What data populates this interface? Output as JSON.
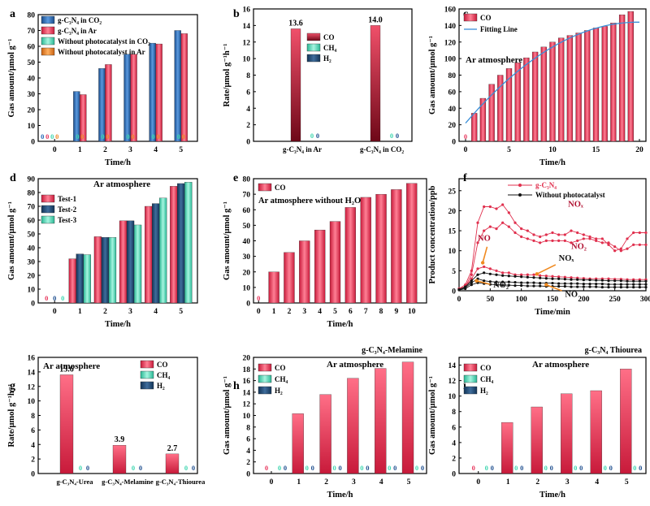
{
  "chart_data": [
    {
      "panel": "a",
      "type": "bar",
      "xlabel": "Time/h",
      "ylabel": "Gas amount/μmol g⁻¹",
      "xticks": [
        "0",
        "1",
        "2",
        "3",
        "4",
        "5"
      ],
      "ylim": [
        0,
        80
      ],
      "yticks": [
        0,
        10,
        20,
        30,
        40,
        50,
        60,
        70,
        80
      ],
      "legend": [
        "g-C₃N₄ in CO₂",
        "g-C₃N₄ in Ar",
        "Without photocatalyst in CO₂",
        "Without photocatalyst in Ar"
      ],
      "series": [
        {
          "name": "g-C₃N₄ in CO₂",
          "color": "#2468b4",
          "values": [
            0,
            31.5,
            46,
            55,
            62,
            70
          ]
        },
        {
          "name": "g-C₃N₄ in Ar",
          "color": "#e8385e",
          "values": [
            0,
            29.5,
            48.5,
            55,
            61.5,
            68
          ]
        },
        {
          "name": "Without photocatalyst in CO₂",
          "color": "#3fd6b0",
          "values": [
            0,
            0,
            0,
            0,
            0,
            0
          ]
        },
        {
          "name": "Without photocatalyst in Ar",
          "color": "#ee8a2a",
          "values": [
            0,
            0,
            0,
            0,
            0,
            0
          ]
        }
      ],
      "zero_labels": "0"
    },
    {
      "panel": "b",
      "type": "bar",
      "ylabel": "Rate/μmol g⁻¹h⁻¹",
      "ylim": [
        0,
        16
      ],
      "yticks": [
        0,
        2,
        4,
        6,
        8,
        10,
        12,
        14,
        16
      ],
      "categories": [
        "g-C₃N₄ in Ar",
        "g-C₃N₄ in CO₂"
      ],
      "legend": [
        "CO",
        "CH₄",
        "H₂"
      ],
      "series": [
        {
          "name": "CO",
          "values": [
            13.6,
            14.0
          ]
        },
        {
          "name": "CH₄",
          "values": [
            0,
            0
          ]
        },
        {
          "name": "H₂",
          "values": [
            0,
            0
          ]
        }
      ],
      "value_labels": [
        "13.6",
        "14.0"
      ]
    },
    {
      "panel": "c",
      "type": "bar",
      "annotation": "Ar atmosphere",
      "xlabel": "Time/h",
      "ylabel": "Gas amount/μmol g⁻¹",
      "xlim": [
        0,
        20
      ],
      "xticks": [
        0,
        5,
        10,
        15,
        20
      ],
      "ylim": [
        0,
        160
      ],
      "yticks": [
        0,
        20,
        40,
        60,
        80,
        100,
        120,
        140,
        160
      ],
      "legend": [
        "CO",
        "Fitting Line"
      ],
      "x": [
        0,
        1,
        2,
        3,
        4,
        5,
        6,
        7,
        8,
        9,
        10,
        11,
        12,
        13,
        14,
        15,
        16,
        17,
        18,
        19
      ],
      "values": [
        0,
        34,
        52,
        69,
        80,
        88,
        95,
        101,
        108,
        114,
        120,
        125,
        128,
        131,
        134,
        137,
        139,
        143,
        153,
        157
      ]
    },
    {
      "panel": "d",
      "type": "bar",
      "annotation": "Ar atmosphere",
      "xlabel": "Time/h",
      "ylabel": "Gas amount/μmol g⁻¹",
      "xticks": [
        "0",
        "1",
        "2",
        "3",
        "4",
        "5"
      ],
      "ylim": [
        0,
        90
      ],
      "yticks": [
        0,
        10,
        20,
        30,
        40,
        50,
        60,
        70,
        80,
        90
      ],
      "legend": [
        "Test-1",
        "Test-2",
        "Test-3"
      ],
      "series": [
        {
          "name": "Test-1",
          "values": [
            0,
            32,
            48,
            59.5,
            70,
            84.5
          ]
        },
        {
          "name": "Test-2",
          "values": [
            0,
            35.5,
            47.5,
            59.5,
            72,
            86.5
          ]
        },
        {
          "name": "Test-3",
          "values": [
            0,
            35,
            47.5,
            56.5,
            76,
            87.5
          ]
        }
      ],
      "zero_labels": "0"
    },
    {
      "panel": "e",
      "type": "bar",
      "annotation": "Ar atmosphere without H₂O",
      "xlabel": "Time/h",
      "ylabel": "Gas amount/μmol g⁻¹",
      "xticks": [
        "0",
        "1",
        "2",
        "3",
        "4",
        "5",
        "6",
        "7",
        "8",
        "9",
        "10"
      ],
      "ylim": [
        0,
        80
      ],
      "yticks": [
        0,
        10,
        20,
        30,
        40,
        50,
        60,
        70,
        80
      ],
      "legend": [
        "CO"
      ],
      "values": [
        0,
        20,
        32.5,
        40,
        47,
        52.5,
        61.5,
        68,
        70,
        73,
        77
      ]
    },
    {
      "panel": "f",
      "type": "line",
      "xlabel": "Time/min",
      "ylabel": "Product concentration/ppb",
      "xlim": [
        0,
        300
      ],
      "xticks": [
        0,
        50,
        100,
        150,
        200,
        250,
        300
      ],
      "ylim": [
        0,
        28
      ],
      "yticks": [
        0,
        5,
        10,
        15,
        20,
        25
      ],
      "legend": [
        "g-C₃N₄",
        "Without photocatalyst"
      ],
      "annotations": [
        "NOₓ",
        "NO₂",
        "NO",
        "NOₓ",
        "NO₂",
        "NO"
      ],
      "series": [
        {
          "name": "g-C₃N₄ NOx",
          "x": [
            0,
            10,
            20,
            30,
            40,
            50,
            60,
            70,
            80,
            90,
            100,
            110,
            120,
            130,
            140,
            150,
            160,
            170,
            180,
            190,
            200,
            210,
            220,
            230,
            240,
            250,
            260,
            270,
            280,
            290,
            300
          ],
          "values": [
            0.5,
            1.5,
            5,
            17,
            21,
            21,
            20.5,
            21.5,
            19.5,
            17,
            15.5,
            15,
            14,
            13.5,
            14,
            14.5,
            14,
            14,
            15,
            14.5,
            14,
            13.5,
            13,
            13,
            11.5,
            10,
            10.5,
            13,
            14.5,
            14.5,
            14.5
          ]
        },
        {
          "name": "g-C₃N₄ NO2",
          "x": [
            0,
            10,
            20,
            30,
            40,
            50,
            60,
            70,
            80,
            90,
            100,
            110,
            120,
            130,
            140,
            150,
            160,
            170,
            180,
            190,
            200,
            210,
            220,
            230,
            240,
            250,
            260,
            270,
            280,
            290,
            300
          ],
          "values": [
            0.5,
            1,
            4,
            12,
            15,
            16,
            15.5,
            17,
            16,
            14.5,
            13.5,
            13,
            12.5,
            12,
            12.5,
            12.5,
            12.5,
            12.5,
            12,
            12.5,
            13,
            13,
            12.5,
            12,
            12,
            11,
            10,
            10.5,
            11.5,
            11.5,
            11.5
          ]
        },
        {
          "name": "g-C₃N₄ NO",
          "x": [
            0,
            10,
            20,
            30,
            40,
            50,
            60,
            70,
            80,
            90,
            100,
            110,
            120,
            130,
            140,
            150,
            160,
            170,
            180,
            190,
            200,
            210,
            220,
            230,
            240,
            250,
            260,
            270,
            280,
            290,
            300
          ],
          "values": [
            0.5,
            1,
            3,
            5.5,
            6,
            5.5,
            5,
            4.5,
            4.5,
            4,
            4,
            4,
            4,
            3.8,
            3.7,
            3.6,
            3.5,
            3.4,
            3.3,
            3.2,
            3.1,
            3,
            3,
            3,
            3,
            2.9,
            2.9,
            2.8,
            2.8,
            2.8,
            2.8
          ]
        },
        {
          "name": "Without photocatalyst NOx",
          "x": [
            0,
            10,
            20,
            30,
            40,
            50,
            60,
            70,
            80,
            90,
            100,
            110,
            120,
            130,
            140,
            150,
            160,
            170,
            180,
            190,
            200,
            210,
            220,
            230,
            240,
            250,
            260,
            270,
            280,
            290,
            300
          ],
          "values": [
            0.3,
            1,
            2.5,
            4,
            4.5,
            4.2,
            4,
            3.8,
            3.7,
            3.6,
            3.5,
            3.4,
            3.3,
            3.2,
            3.1,
            3,
            3,
            2.9,
            2.8,
            2.8,
            2.7,
            2.7,
            2.6,
            2.6,
            2.5,
            2.5,
            2.5,
            2.4,
            2.4,
            2.4,
            2.4
          ]
        },
        {
          "name": "Without photocatalyst NO2",
          "x": [
            0,
            10,
            20,
            30,
            40,
            50,
            60,
            70,
            80,
            90,
            100,
            110,
            120,
            130,
            140,
            150,
            160,
            170,
            180,
            190,
            200,
            210,
            220,
            230,
            240,
            250,
            260,
            270,
            280,
            290,
            300
          ],
          "values": [
            0.3,
            0.8,
            2,
            3,
            2.5,
            2.3,
            2.2,
            2.2,
            2.2,
            2.1,
            2,
            2,
            2,
            1.9,
            1.9,
            1.9,
            1.8,
            1.8,
            1.8,
            1.8,
            1.7,
            1.7,
            1.7,
            1.7,
            1.6,
            1.6,
            1.6,
            1.6,
            1.6,
            1.6,
            1.6
          ]
        },
        {
          "name": "Without photocatalyst NO",
          "x": [
            0,
            10,
            20,
            30,
            40,
            50,
            60,
            70,
            80,
            90,
            100,
            110,
            120,
            130,
            140,
            150,
            160,
            170,
            180,
            190,
            200,
            210,
            220,
            230,
            240,
            250,
            260,
            270,
            280,
            290,
            300
          ],
          "values": [
            0.2,
            0.5,
            1.5,
            2,
            1.8,
            1.6,
            1.5,
            1.4,
            1.4,
            1.3,
            1.3,
            1.2,
            1.2,
            1.2,
            1.1,
            1.1,
            1.1,
            1.1,
            1,
            1,
            1,
            1,
            1,
            0.9,
            0.9,
            0.9,
            0.9,
            0.9,
            0.9,
            0.9,
            0.9
          ]
        }
      ]
    },
    {
      "panel": "g",
      "type": "bar",
      "annotation": "Ar atmosphere",
      "ylabel": "Rate/μmol g⁻¹h⁻¹",
      "ylim": [
        0,
        16
      ],
      "yticks": [
        0,
        2,
        4,
        6,
        8,
        10,
        12,
        14,
        16
      ],
      "categories": [
        "g-C₃N₄-Urea",
        "g-C₃N₄-Melamine",
        "g-C₃N₄-Thiourea"
      ],
      "legend": [
        "CO",
        "CH₄",
        "H₂"
      ],
      "series": [
        {
          "name": "CO",
          "values": [
            13.6,
            3.9,
            2.7
          ]
        },
        {
          "name": "CH₄",
          "values": [
            0,
            0,
            0
          ]
        },
        {
          "name": "H₂",
          "values": [
            0,
            0,
            0
          ]
        }
      ],
      "value_labels": [
        "13.6",
        "3.9",
        "2.7"
      ]
    },
    {
      "panel": "h",
      "type": "bar",
      "title": "g-C₃N₄-Melamine",
      "annotation": "Ar atmosphere",
      "xlabel": "Time/h",
      "ylabel": "Gas amount/μmol g⁻¹",
      "xticks": [
        "0",
        "1",
        "2",
        "3",
        "4",
        "5"
      ],
      "ylim": [
        0,
        20
      ],
      "yticks": [
        0,
        2,
        4,
        6,
        8,
        10,
        12,
        14,
        16,
        18,
        20
      ],
      "legend": [
        "CO",
        "CH₄",
        "H₂"
      ],
      "series": [
        {
          "name": "CO",
          "values": [
            0,
            10.3,
            13.6,
            16.4,
            18.1,
            19.2
          ]
        },
        {
          "name": "CH₄",
          "values": [
            0,
            0,
            0,
            0,
            0,
            0
          ]
        },
        {
          "name": "H₂",
          "values": [
            0,
            0,
            0,
            0,
            0,
            0
          ]
        }
      ]
    },
    {
      "panel": "i",
      "type": "bar",
      "title": "g-C₃N₄ Thiourea",
      "annotation": "Ar atmosphere",
      "xlabel": "Time/h",
      "ylabel": "Gas amount/μmol g⁻¹",
      "xticks": [
        "0",
        "1",
        "2",
        "3",
        "4",
        "5"
      ],
      "ylim": [
        0,
        15
      ],
      "yticks": [
        0,
        2,
        4,
        6,
        8,
        10,
        12,
        14
      ],
      "legend": [
        "CO",
        "CH₄",
        "H₂"
      ],
      "series": [
        {
          "name": "CO",
          "values": [
            0,
            6.6,
            8.6,
            10.3,
            10.7,
            13.5
          ]
        },
        {
          "name": "CH₄",
          "values": [
            0,
            0,
            0,
            0,
            0,
            0
          ]
        },
        {
          "name": "H₂",
          "values": [
            0,
            0,
            0,
            0,
            0,
            0
          ]
        }
      ]
    }
  ],
  "colors": {
    "co": "#e8385e",
    "ch4": "#3fd6b0",
    "h2": "#1f4f8f",
    "co2_series": "#2468b4",
    "dark_red": "#8e1020"
  }
}
